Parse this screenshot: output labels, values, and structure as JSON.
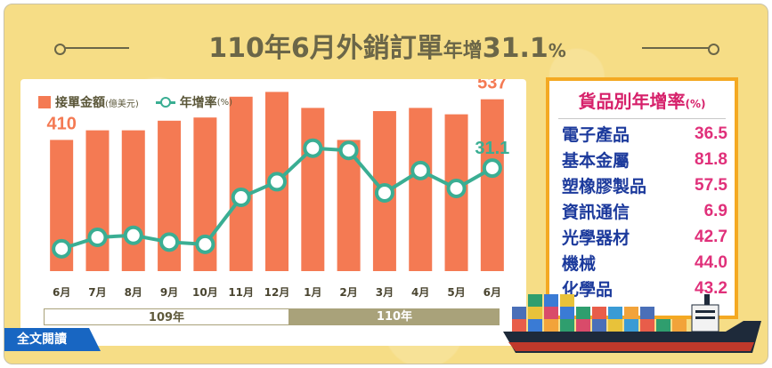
{
  "title": {
    "main": "110年6月外銷訂單",
    "sub": "年增",
    "number": "31.1",
    "percent": "%"
  },
  "legend": {
    "bar_label": "接單金額",
    "bar_unit": "(億美元)",
    "line_label": "年增率",
    "line_unit": "(%)"
  },
  "years": {
    "y109": "109年",
    "y110": "110年"
  },
  "fulltext_button": "全文閱讀",
  "products": {
    "title": "貨品別年增率",
    "unit": "(%)",
    "items": [
      {
        "name": "電子產品",
        "value": "36.5"
      },
      {
        "name": "基本金屬",
        "value": "81.8"
      },
      {
        "name": "塑橡膠製品",
        "value": "57.5"
      },
      {
        "name": "資訊通信",
        "value": "6.9"
      },
      {
        "name": "光學器材",
        "value": "42.7"
      },
      {
        "name": "機械",
        "value": "44.0"
      },
      {
        "name": "化學品",
        "value": "43.2"
      }
    ]
  },
  "colors": {
    "bar": "#f47a53",
    "line": "#3aae93",
    "title": "#6b6648",
    "accent": "#d6206a"
  },
  "chart_data": {
    "type": "bar",
    "categories": [
      "6月",
      "7月",
      "8月",
      "9月",
      "10月",
      "11月",
      "12月",
      "1月",
      "2月",
      "3月",
      "4月",
      "5月",
      "6月"
    ],
    "series": [
      {
        "name": "接單金額",
        "unit": "億美元",
        "values": [
          410,
          440,
          440,
          470,
          480,
          545,
          560,
          510,
          410,
          500,
          510,
          490,
          537
        ]
      },
      {
        "name": "年增率",
        "unit": "%",
        "values": [
          -5.0,
          0.1,
          1.0,
          -2.0,
          -3.0,
          18.0,
          25.0,
          40.0,
          39.0,
          20.0,
          30.0,
          22.0,
          31.1
        ]
      }
    ],
    "data_labels": [
      {
        "series": 0,
        "index": 0,
        "text": "410"
      },
      {
        "series": 0,
        "index": 12,
        "text": "537"
      },
      {
        "series": 1,
        "index": 12,
        "text": "31.1"
      }
    ],
    "ylim_bars": [
      0,
      600
    ],
    "ylim_line": [
      -15,
      55
    ],
    "legend_position": "top-left",
    "grid": false
  }
}
